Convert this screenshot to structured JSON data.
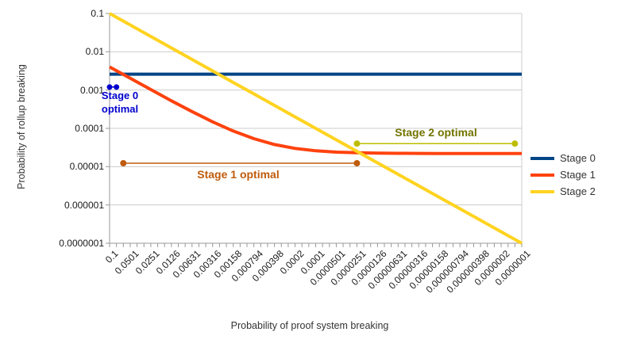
{
  "y_axis": {
    "title": "Probability of rollup breaking",
    "ticks": [
      "0.1",
      "0.01",
      "0.001",
      "0.0001",
      "0.00001",
      "0.000001",
      "0.0000001"
    ]
  },
  "x_axis": {
    "title": "Probability of proof system breaking",
    "ticks": [
      "0.1",
      "0.0501",
      "0.0251",
      "0.0126",
      "0.00631",
      "0.00316",
      "0.00158",
      "0.000794",
      "0.000398",
      "0.0002",
      "0.0001",
      "0.0000501",
      "0.0000251",
      "0.0000126",
      "0.00000631",
      "0.00000316",
      "0.00000158",
      "0.000000794",
      "0.000000398",
      "0.0000002",
      "0.0000001"
    ]
  },
  "legend": {
    "position": "right",
    "items": [
      {
        "label": "Stage 0",
        "color": "#004586"
      },
      {
        "label": "Stage 1",
        "color": "#FF420E"
      },
      {
        "label": "Stage 2",
        "color": "#FFD320"
      }
    ]
  },
  "annotations": {
    "stage0": {
      "text_line1": "Stage 0",
      "text_line2": "optimal",
      "color": "#0000CD",
      "x_from": 0.1,
      "x_to": 0.0794,
      "y": 0.0012
    },
    "stage1": {
      "text": "Stage 1 optimal",
      "color": "#BF5B0B",
      "x_from": 0.0631,
      "x_to": 2.51e-05,
      "y": 1.23e-05
    },
    "stage2": {
      "text": "Stage 2 optimal",
      "text_color": "#737300",
      "line_color": "#BDBD00",
      "x_from": 2.51e-05,
      "x_to": 1.26e-07,
      "y": 4e-05
    }
  },
  "chart_data": {
    "type": "line",
    "title": "",
    "xlabel": "Probability of proof system breaking",
    "ylabel": "Probability of rollup breaking",
    "x_scale": "log",
    "y_scale": "log",
    "xlim": [
      0.1,
      1e-07
    ],
    "ylim": [
      0.1,
      1e-07
    ],
    "grid": "horizontal-decades",
    "legend_position": "right",
    "x": [
      0.1,
      0.0501,
      0.0251,
      0.0126,
      0.00631,
      0.00316,
      0.00158,
      0.000794,
      0.000398,
      0.0002,
      0.0001,
      5.01e-05,
      2.51e-05,
      1.26e-05,
      6.31e-06,
      3.16e-06,
      1.58e-06,
      7.94e-07,
      3.98e-07,
      2e-07,
      1e-07
    ],
    "series": [
      {
        "name": "Stage 0",
        "color": "#004586",
        "values": [
          0.0026,
          0.0026,
          0.0026,
          0.0026,
          0.0026,
          0.0026,
          0.0026,
          0.0026,
          0.0026,
          0.0026,
          0.0026,
          0.0026,
          0.0026,
          0.0026,
          0.0026,
          0.0026,
          0.0026,
          0.0026,
          0.0026,
          0.0026,
          0.0026
        ]
      },
      {
        "name": "Stage 1",
        "color": "#FF420E",
        "values": [
          0.00402,
          0.00203,
          0.00103,
          0.000526,
          0.000274,
          0.000148,
          8.52e-05,
          5.38e-05,
          3.79e-05,
          3e-05,
          2.6e-05,
          2.4e-05,
          2.3e-05,
          2.25e-05,
          2.23e-05,
          2.22e-05,
          2.21e-05,
          2.21e-05,
          2.2e-05,
          2.2e-05,
          2.2e-05
        ]
      },
      {
        "name": "Stage 2",
        "color": "#FFD320",
        "values": [
          0.1,
          0.0501,
          0.0251,
          0.0126,
          0.00631,
          0.00316,
          0.00158,
          0.000794,
          0.000398,
          0.0002,
          0.0001,
          5.01e-05,
          2.51e-05,
          1.26e-05,
          6.31e-06,
          3.16e-06,
          1.58e-06,
          7.94e-07,
          3.98e-07,
          2e-07,
          1e-07
        ]
      }
    ]
  }
}
